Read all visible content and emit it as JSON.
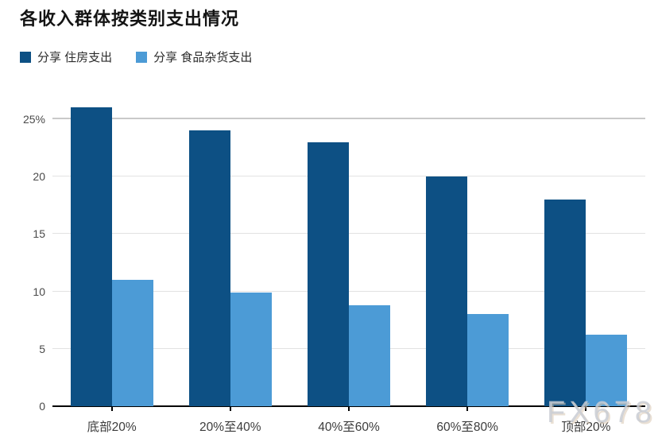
{
  "title": "各收入群体按类别支出情况",
  "watermark": "FX678",
  "colors": {
    "housing": "#0d5084",
    "groceries": "#4c9bd6",
    "grid": "#e2e2e2",
    "grid_strong": "#c9c9c9",
    "axis": "#000000"
  },
  "legend": {
    "items": [
      {
        "label": "分享 住房支出",
        "color": "#0d5084"
      },
      {
        "label": "分享 食品杂货支出",
        "color": "#4c9bd6"
      }
    ]
  },
  "chart_data": {
    "type": "bar",
    "title": "各收入群体按类别支出情况",
    "categories": [
      "底部20%",
      "20%至40%",
      "40%至60%",
      "60%至80%",
      "顶部20%"
    ],
    "series": [
      {
        "name": "分享 住房支出",
        "color": "#0d5084",
        "values": [
          26,
          24,
          23,
          20,
          18
        ]
      },
      {
        "name": "分享 食品杂货支出",
        "color": "#4c9bd6",
        "values": [
          11,
          9.9,
          8.8,
          8,
          6.2
        ]
      }
    ],
    "xlabel": "",
    "ylabel": "",
    "ylim": [
      0,
      26.2
    ],
    "yticks": [
      {
        "value": 25,
        "label": "25%"
      },
      {
        "value": 20,
        "label": "20"
      },
      {
        "value": 15,
        "label": "15"
      },
      {
        "value": 10,
        "label": "10"
      },
      {
        "value": 5,
        "label": "5"
      },
      {
        "value": 0,
        "label": "0"
      }
    ],
    "grid": true,
    "legend_position": "top-left"
  }
}
